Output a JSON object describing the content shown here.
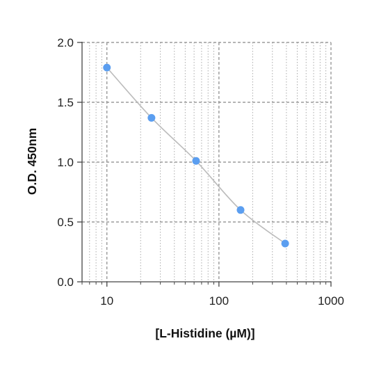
{
  "chart_data": {
    "type": "scatter",
    "title": "",
    "xlabel": "[L-Histidine (µM)]",
    "ylabel": "O.D. 450nm",
    "xscale": "log",
    "xlim": [
      6,
      1000
    ],
    "ylim": [
      0,
      2.0
    ],
    "xticks": [
      {
        "value": 10,
        "label": "10"
      },
      {
        "value": 100,
        "label": "100"
      },
      {
        "value": 1000,
        "label": "1000"
      }
    ],
    "yticks": [
      {
        "value": 0,
        "label": "0.0"
      },
      {
        "value": 0.5,
        "label": "0.5"
      },
      {
        "value": 1.0,
        "label": "1.0"
      },
      {
        "value": 1.5,
        "label": "1.5"
      },
      {
        "value": 2.0,
        "label": "2.0"
      }
    ],
    "grid": true,
    "legend": "none",
    "series": [
      {
        "x": [
          10,
          25,
          62.5,
          156,
          390
        ],
        "y": [
          1.79,
          1.37,
          1.01,
          0.6,
          0.32
        ]
      }
    ],
    "colors": {
      "points": "#5b9ef0",
      "fit_line": "#bbbbbb",
      "grid": "#888888",
      "axis": "#444444"
    }
  }
}
